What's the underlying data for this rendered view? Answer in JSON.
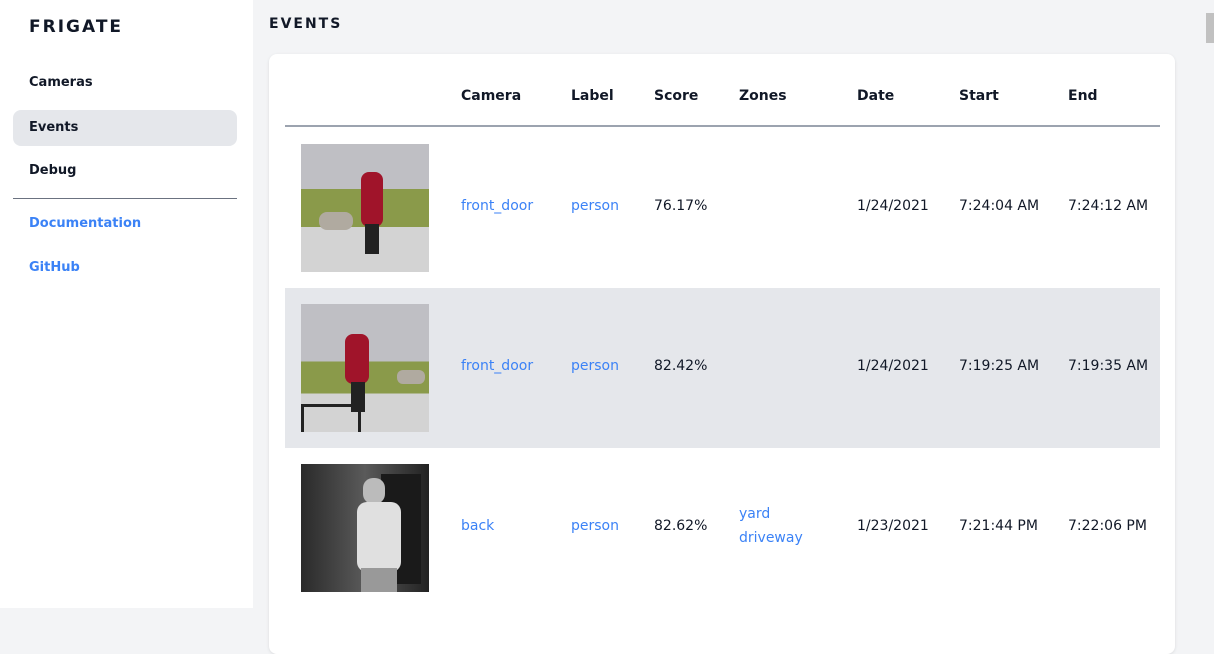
{
  "sidebar": {
    "brand": "FRIGATE",
    "items": [
      {
        "label": "Cameras"
      },
      {
        "label": "Events",
        "active": true
      },
      {
        "label": "Debug"
      }
    ],
    "links": [
      {
        "label": "Documentation"
      },
      {
        "label": "GitHub"
      }
    ]
  },
  "page": {
    "title": "EVENTS"
  },
  "table": {
    "headers": [
      "Camera",
      "Label",
      "Score",
      "Zones",
      "Date",
      "Start",
      "End"
    ],
    "rows": [
      {
        "camera": "front_door",
        "label": "person",
        "score": "76.17%",
        "zones": [],
        "date": "1/24/2021",
        "start": "7:24:04 AM",
        "end": "7:24:12 AM"
      },
      {
        "camera": "front_door",
        "label": "person",
        "score": "82.42%",
        "zones": [],
        "date": "1/24/2021",
        "start": "7:19:25 AM",
        "end": "7:19:35 AM"
      },
      {
        "camera": "back",
        "label": "person",
        "score": "82.62%",
        "zones": [
          "yard",
          "driveway"
        ],
        "date": "1/23/2021",
        "start": "7:21:44 PM",
        "end": "7:22:06 PM"
      }
    ]
  },
  "colors": {
    "accent": "#3b82f6",
    "active_bg": "#e5e7eb"
  }
}
